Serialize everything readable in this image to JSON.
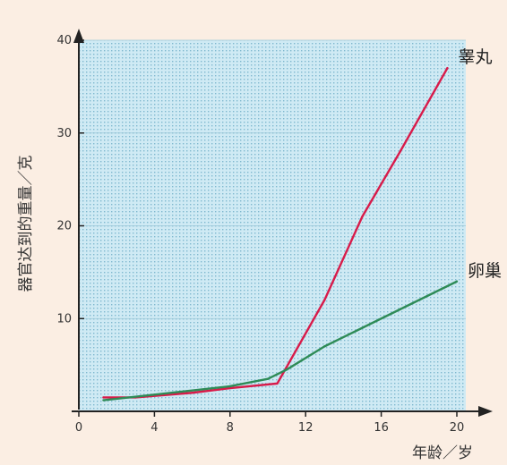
{
  "chart_data": {
    "type": "line",
    "xlabel": "年龄／岁",
    "ylabel": "器官达到的重量／克",
    "xlim": [
      0,
      20
    ],
    "ylim": [
      0,
      40
    ],
    "x_ticks": [
      "0",
      "4",
      "8",
      "12",
      "16",
      "20"
    ],
    "y_ticks": [
      "10",
      "20",
      "30",
      "40"
    ],
    "series": [
      {
        "name": "睾丸",
        "color": "#d81b4a",
        "x": [
          1.3,
          3,
          6,
          8,
          10.5,
          13,
          15,
          17,
          19.5
        ],
        "y": [
          1.5,
          1.5,
          2,
          2.5,
          3,
          12,
          21,
          28,
          37
        ]
      },
      {
        "name": "卵巢",
        "color": "#2e8b57",
        "x": [
          1.3,
          4,
          8,
          10,
          11,
          13,
          15,
          17,
          20
        ],
        "y": [
          1.2,
          1.8,
          2.7,
          3.5,
          4.5,
          7,
          9,
          11,
          14
        ]
      }
    ],
    "grid": true
  }
}
